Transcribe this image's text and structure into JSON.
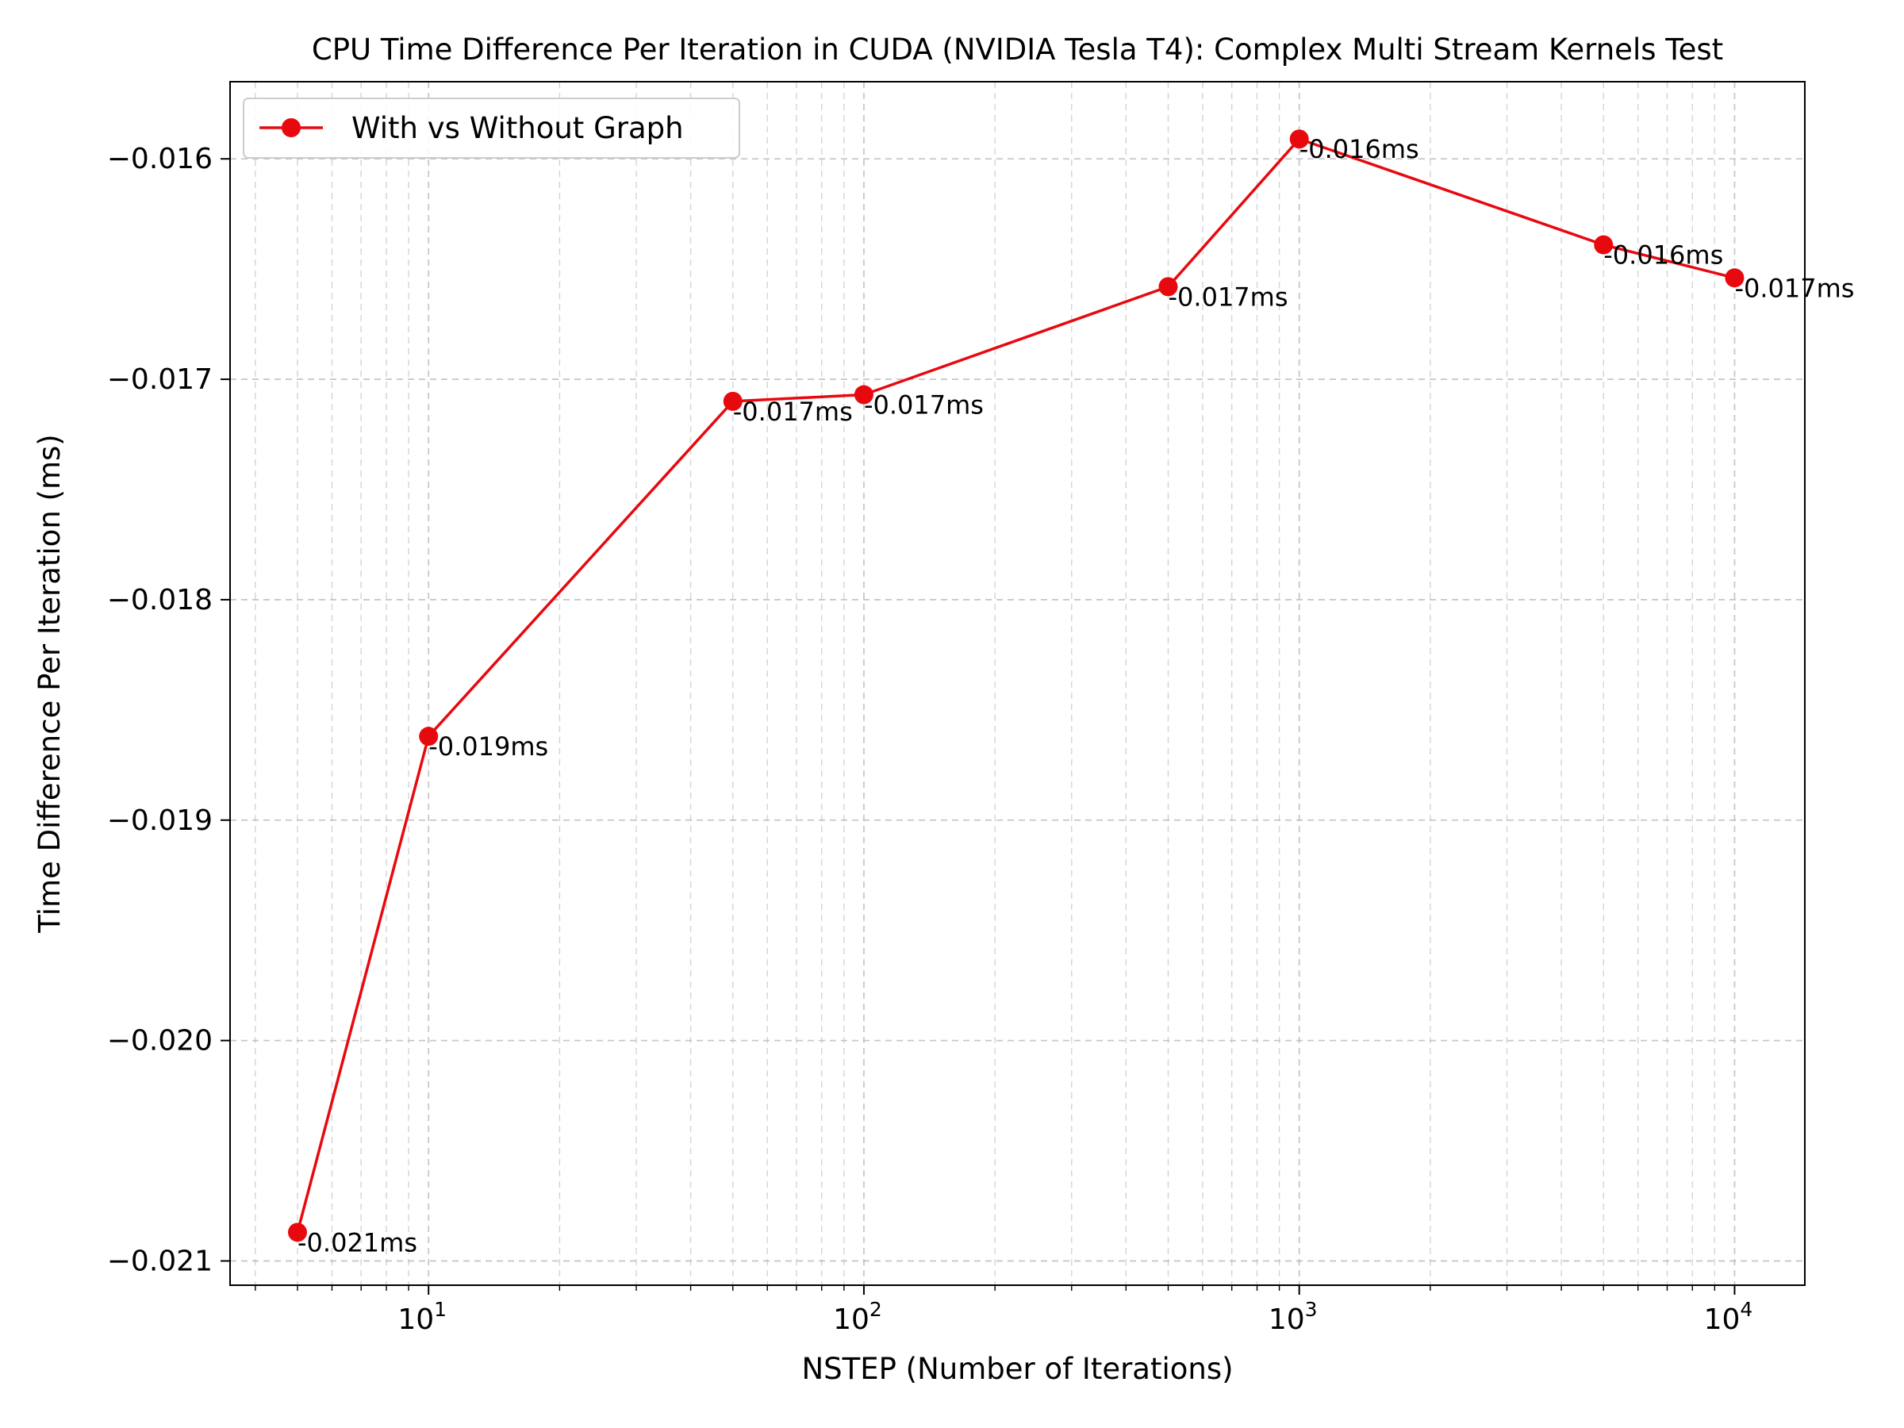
{
  "chart_data": {
    "type": "line",
    "title": "CPU Time Difference Per Iteration in CUDA (NVIDIA Tesla T4): Complex Multi Stream Kernels Test",
    "xlabel": "NSTEP (Number of Iterations)",
    "ylabel": "Time Difference Per Iteration (ms)",
    "x_scale": "log",
    "xlim": [
      3.5,
      14500
    ],
    "ylim": [
      -0.02111,
      -0.01565
    ],
    "x_ticks": [
      {
        "value": 10,
        "base": "10",
        "exp": "1"
      },
      {
        "value": 100,
        "base": "10",
        "exp": "2"
      },
      {
        "value": 1000,
        "base": "10",
        "exp": "3"
      },
      {
        "value": 10000,
        "base": "10",
        "exp": "4"
      }
    ],
    "y_ticks": [
      {
        "value": -0.016,
        "label": "−0.016"
      },
      {
        "value": -0.017,
        "label": "−0.017"
      },
      {
        "value": -0.018,
        "label": "−0.018"
      },
      {
        "value": -0.019,
        "label": "−0.019"
      },
      {
        "value": -0.02,
        "label": "−0.020"
      },
      {
        "value": -0.021,
        "label": "−0.021"
      }
    ],
    "grid": true,
    "legend_position": "top-left",
    "series": [
      {
        "name": "With vs Without Graph",
        "color": "#e8090f",
        "x": [
          5,
          10,
          50,
          100,
          500,
          1000,
          5000,
          10000
        ],
        "y": [
          -0.02087,
          -0.01862,
          -0.0171,
          -0.01707,
          -0.01658,
          -0.01591,
          -0.01639,
          -0.01654
        ],
        "labels": [
          "-0.021ms",
          "-0.019ms",
          "-0.017ms",
          "-0.017ms",
          "-0.017ms",
          "-0.016ms",
          "-0.016ms",
          "-0.017ms"
        ]
      }
    ]
  }
}
